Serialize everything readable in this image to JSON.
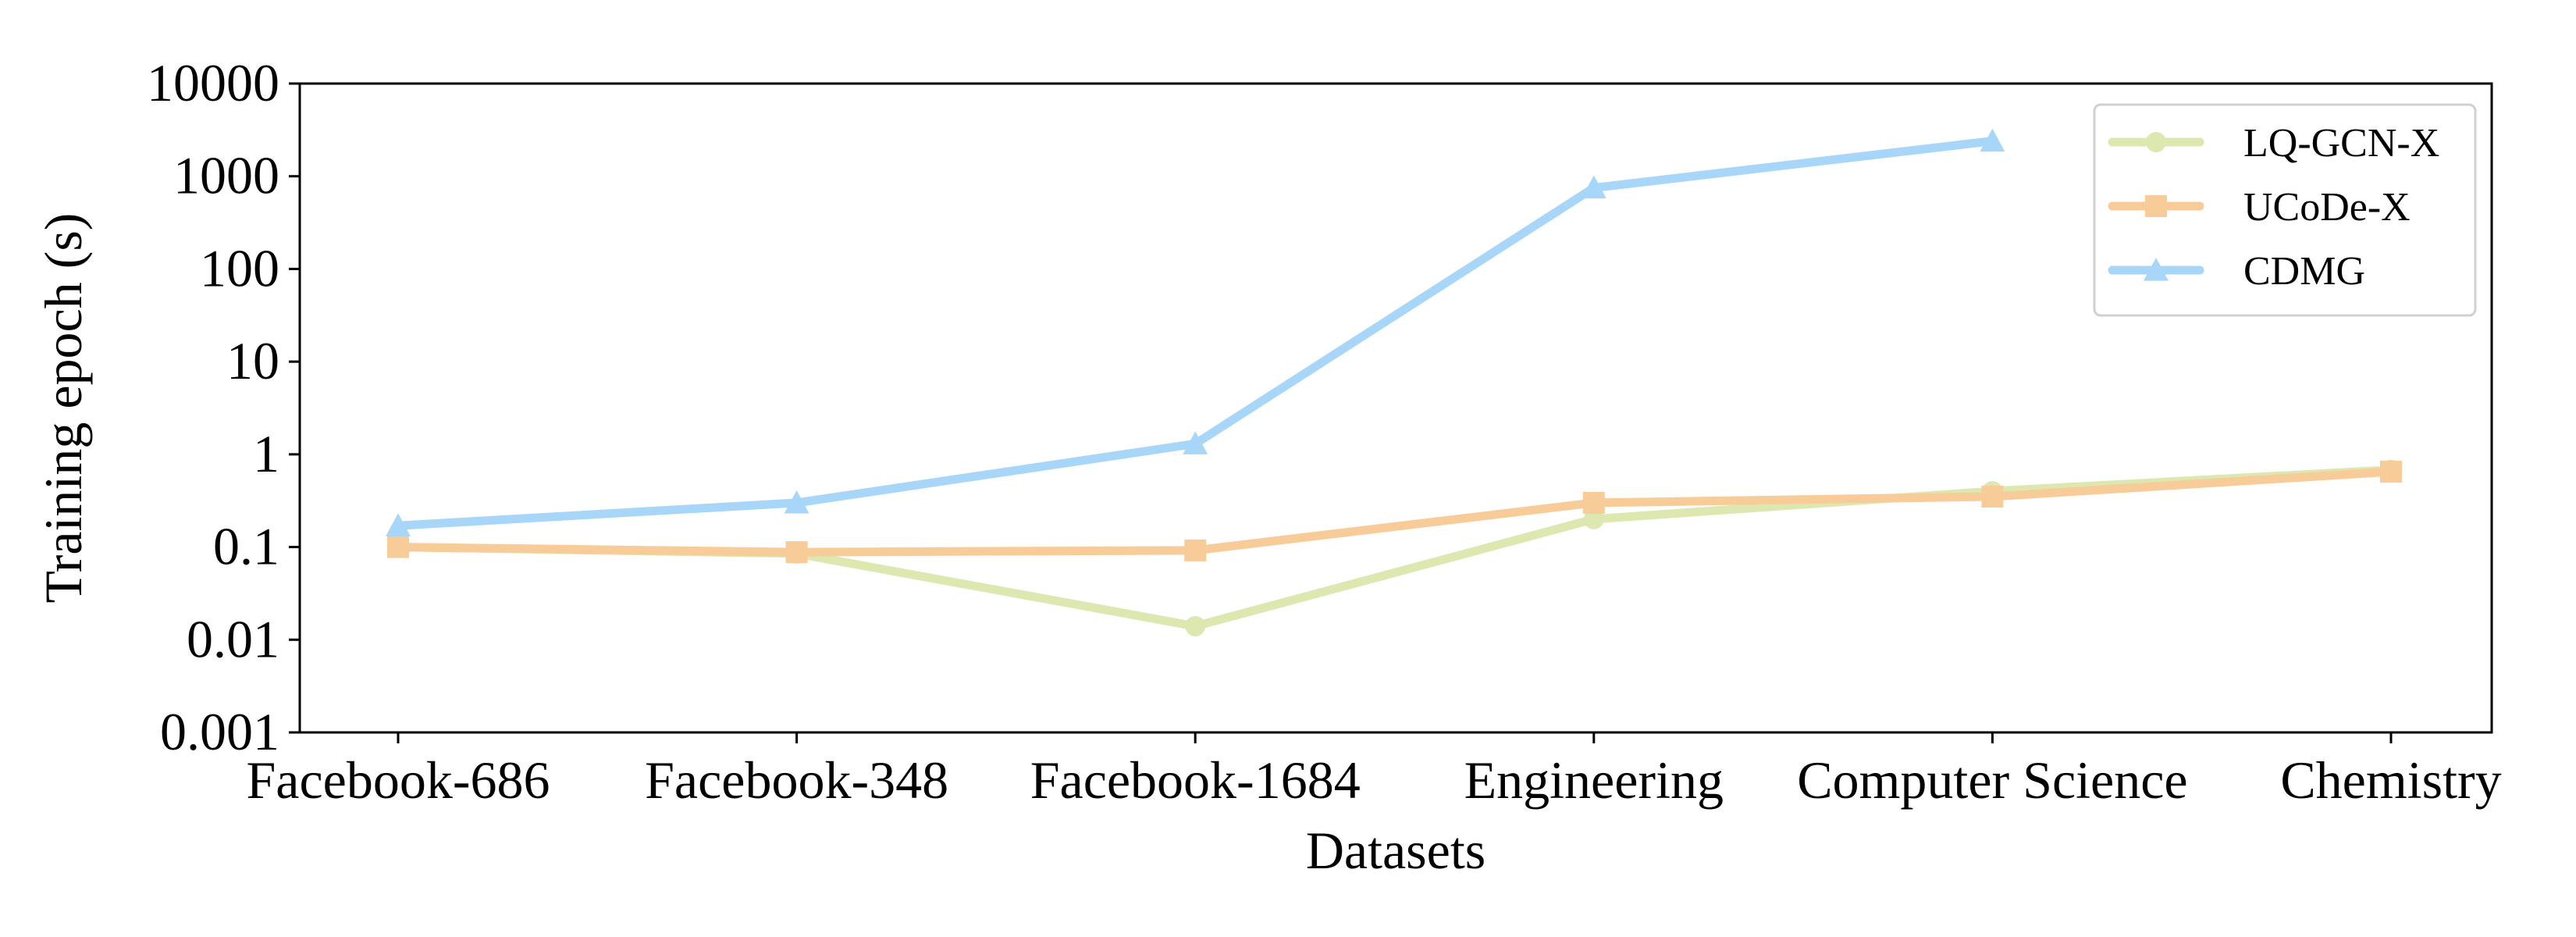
{
  "chart_data": {
    "type": "line",
    "title": "",
    "xlabel": "Datasets",
    "ylabel": "Training epoch (s)",
    "yscale": "log",
    "ylim": [
      0.001,
      10000
    ],
    "yticks": [
      0.001,
      0.01,
      0.1,
      1,
      10,
      100,
      1000,
      10000
    ],
    "ytick_labels": [
      "0.001",
      "0.01",
      "0.1",
      "1",
      "10",
      "100",
      "1000",
      "10000"
    ],
    "categories": [
      "Facebook-686",
      "Facebook-348",
      "Facebook-1684",
      "Engineering",
      "Computer Science",
      "Chemistry"
    ],
    "legend_position": "top-right",
    "grid": false,
    "series": [
      {
        "name": "LQ-GCN-X",
        "marker": "circle",
        "color": "#dce8b0",
        "values": [
          0.1,
          0.085,
          0.014,
          0.2,
          0.4,
          0.68
        ]
      },
      {
        "name": "UCoDe-X",
        "marker": "square",
        "color": "#f8cc98",
        "values": [
          0.1,
          0.088,
          0.092,
          0.3,
          0.35,
          0.65
        ]
      },
      {
        "name": "CDMG",
        "marker": "triangle",
        "color": "#a8d6f8",
        "values": [
          0.17,
          0.3,
          1.3,
          750,
          2400,
          null
        ]
      }
    ]
  }
}
